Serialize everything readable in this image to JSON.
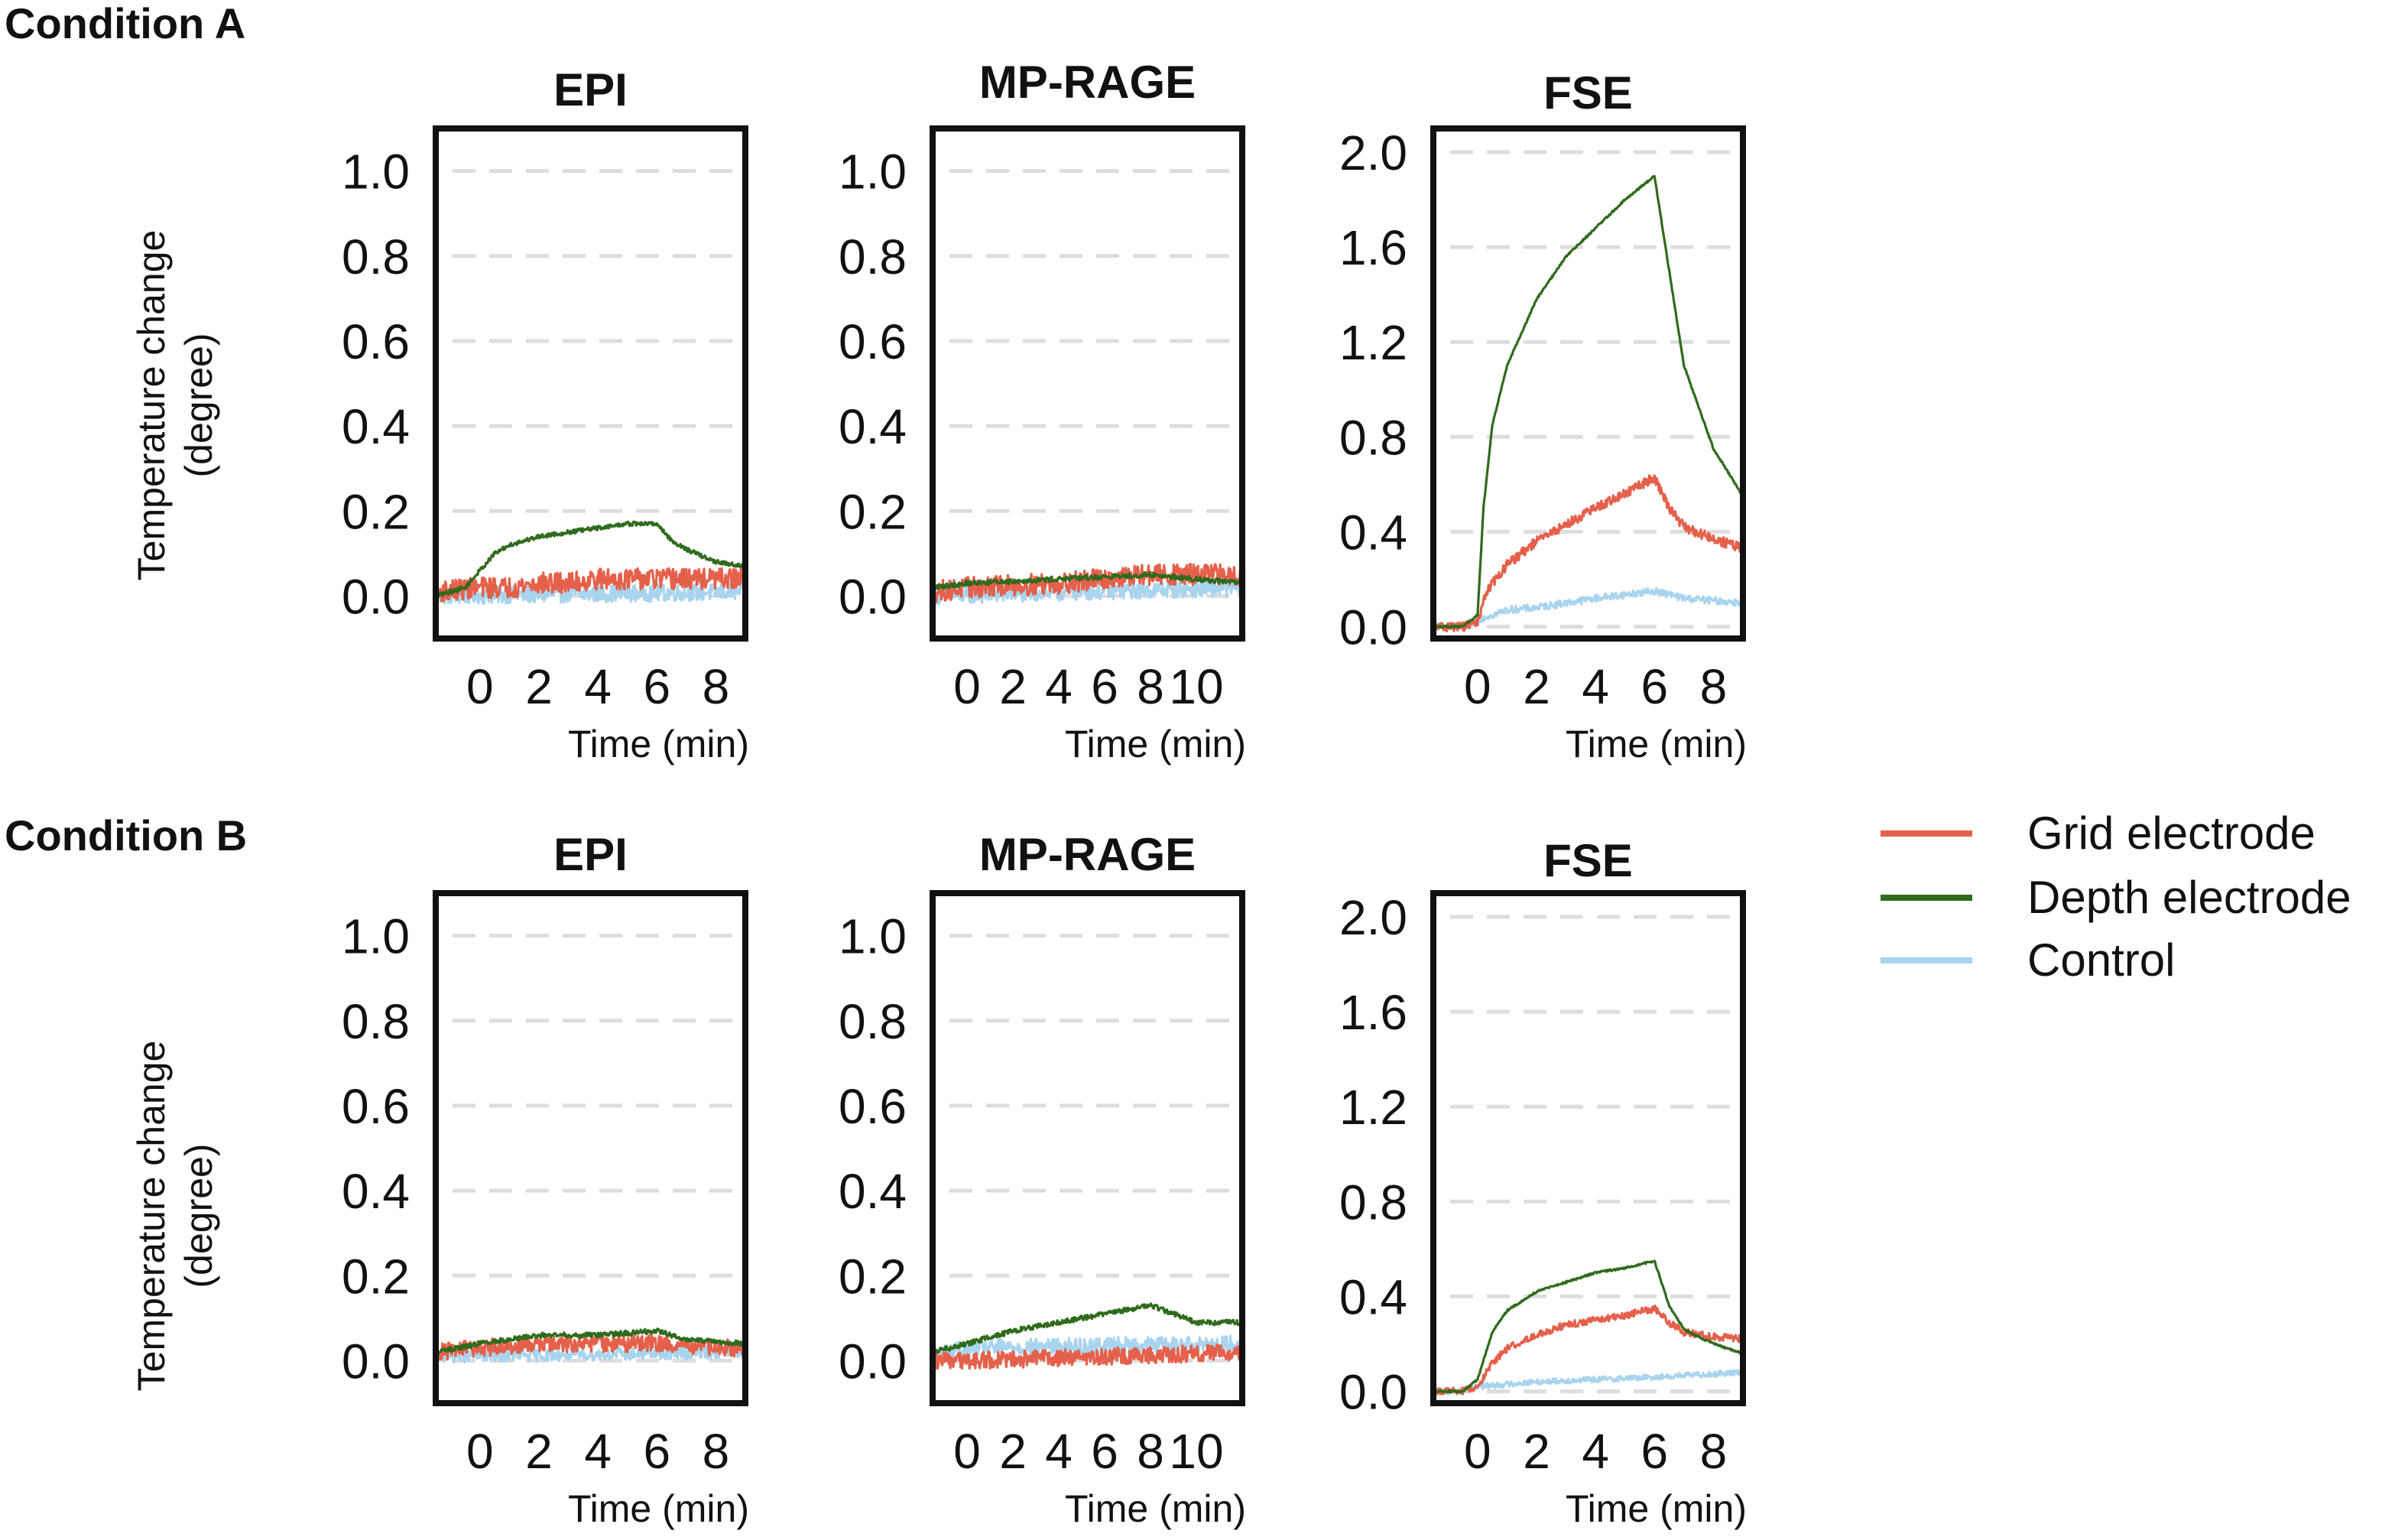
{
  "figure": {
    "conditions": [
      {
        "label": "Condition A"
      },
      {
        "label": "Condition B"
      }
    ],
    "ylabel_line1": "Temperature change",
    "ylabel_line2": "(degree)",
    "xlabel": "Time (min)"
  },
  "legend": {
    "entries": [
      {
        "name": "Grid electrode",
        "color": "#E5604A"
      },
      {
        "name": "Depth electrode",
        "color": "#2F6B1C"
      },
      {
        "name": "Control",
        "color": "#A8D4EE"
      }
    ]
  },
  "chart_data": [
    {
      "id": "A-EPI",
      "condition": "Condition A",
      "type": "line",
      "title": "EPI",
      "xlabel": "Time (min)",
      "ylabel": "Temperature change (degree)",
      "xlim": [
        -1.5,
        9
      ],
      "ylim": [
        -0.1,
        1.1
      ],
      "xticks": [
        0,
        2,
        4,
        6,
        8
      ],
      "yticks": [
        0.0,
        0.2,
        0.4,
        0.6,
        0.8,
        1.0
      ],
      "ytick_labels": [
        "0.0",
        "0.2",
        "0.4",
        "0.6",
        "0.8",
        "1.0"
      ],
      "grid": true,
      "series": [
        {
          "name": "Grid electrode",
          "noise": 0.025,
          "x": [
            -1.5,
            0,
            1,
            2,
            3,
            4,
            5,
            6,
            7,
            8,
            9
          ],
          "values": [
            0.01,
            0.02,
            0.02,
            0.03,
            0.03,
            0.04,
            0.04,
            0.04,
            0.04,
            0.04,
            0.04
          ]
        },
        {
          "name": "Depth electrode",
          "noise": 0.005,
          "x": [
            -1.5,
            -0.5,
            0,
            0.5,
            1,
            2,
            3,
            4,
            5,
            6,
            6.5,
            7,
            8,
            9
          ],
          "values": [
            0.0,
            0.02,
            0.06,
            0.1,
            0.12,
            0.14,
            0.15,
            0.16,
            0.17,
            0.17,
            0.13,
            0.11,
            0.08,
            0.07
          ]
        },
        {
          "name": "Control",
          "noise": 0.02,
          "x": [
            -1.5,
            9
          ],
          "values": [
            0.0,
            0.01
          ]
        }
      ]
    },
    {
      "id": "A-MPRAGE",
      "condition": "Condition A",
      "type": "line",
      "title": "MP-RAGE",
      "xlabel": "Time (min)",
      "ylabel": "Temperature change (degree)",
      "xlim": [
        -1.5,
        12
      ],
      "ylim": [
        -0.1,
        1.1
      ],
      "xticks": [
        0,
        2,
        4,
        6,
        8,
        10
      ],
      "yticks": [
        0.0,
        0.2,
        0.4,
        0.6,
        0.8,
        1.0
      ],
      "ytick_labels": [
        "0.0",
        "0.2",
        "0.4",
        "0.6",
        "0.8",
        "1.0"
      ],
      "grid": true,
      "series": [
        {
          "name": "Grid electrode",
          "noise": 0.025,
          "x": [
            -1.5,
            0,
            4,
            8,
            12
          ],
          "values": [
            0.01,
            0.02,
            0.03,
            0.05,
            0.05
          ]
        },
        {
          "name": "Depth electrode",
          "noise": 0.006,
          "x": [
            -1.5,
            0,
            4,
            8,
            12
          ],
          "values": [
            0.02,
            0.03,
            0.04,
            0.05,
            0.03
          ]
        },
        {
          "name": "Control",
          "noise": 0.02,
          "x": [
            -1.5,
            12
          ],
          "values": [
            0.0,
            0.02
          ]
        }
      ]
    },
    {
      "id": "A-FSE",
      "condition": "Condition A",
      "type": "line",
      "title": "FSE",
      "xlabel": "Time (min)",
      "ylabel": "Temperature change (degree)",
      "xlim": [
        -1.5,
        9
      ],
      "ylim": [
        -0.05,
        2.1
      ],
      "xticks": [
        0,
        2,
        4,
        6,
        8
      ],
      "yticks": [
        0.0,
        0.4,
        0.8,
        1.2,
        1.6,
        2.0
      ],
      "ytick_labels": [
        "0.0",
        "0.4",
        "0.8",
        "1.2",
        "1.6",
        "2.0"
      ],
      "grid": true,
      "series": [
        {
          "name": "Grid electrode",
          "noise": 0.02,
          "x": [
            -1.5,
            -0.5,
            0,
            0.3,
            1,
            2,
            3,
            4,
            5,
            6,
            6.5,
            7,
            8,
            9
          ],
          "values": [
            0.0,
            0.0,
            0.02,
            0.15,
            0.26,
            0.36,
            0.43,
            0.5,
            0.56,
            0.63,
            0.5,
            0.42,
            0.37,
            0.33
          ]
        },
        {
          "name": "Depth electrode",
          "noise": 0.004,
          "x": [
            -1.5,
            -0.5,
            0,
            0.2,
            0.5,
            1,
            2,
            3,
            4,
            5,
            6,
            6.5,
            7,
            8,
            9
          ],
          "values": [
            0.0,
            0.0,
            0.05,
            0.5,
            0.85,
            1.1,
            1.38,
            1.56,
            1.68,
            1.8,
            1.9,
            1.5,
            1.1,
            0.75,
            0.55
          ]
        },
        {
          "name": "Control",
          "noise": 0.015,
          "x": [
            -1.5,
            -0.5,
            0,
            1,
            2,
            4,
            6,
            7,
            9
          ],
          "values": [
            0.0,
            0.0,
            0.03,
            0.07,
            0.08,
            0.12,
            0.15,
            0.12,
            0.1
          ]
        }
      ]
    },
    {
      "id": "B-EPI",
      "condition": "Condition B",
      "type": "line",
      "title": "EPI",
      "xlabel": "Time (min)",
      "ylabel": "Temperature change (degree)",
      "xlim": [
        -1.5,
        9
      ],
      "ylim": [
        -0.1,
        1.1
      ],
      "xticks": [
        0,
        2,
        4,
        6,
        8
      ],
      "yticks": [
        0.0,
        0.2,
        0.4,
        0.6,
        0.8,
        1.0
      ],
      "ytick_labels": [
        "0.0",
        "0.2",
        "0.4",
        "0.6",
        "0.8",
        "1.0"
      ],
      "grid": true,
      "series": [
        {
          "name": "Grid electrode",
          "noise": 0.02,
          "x": [
            -1.5,
            0,
            2,
            4,
            6,
            8,
            9
          ],
          "values": [
            0.02,
            0.03,
            0.04,
            0.04,
            0.04,
            0.03,
            0.03
          ]
        },
        {
          "name": "Depth electrode",
          "noise": 0.006,
          "x": [
            -1.5,
            0,
            2,
            4,
            6,
            7,
            9
          ],
          "values": [
            0.02,
            0.04,
            0.06,
            0.06,
            0.07,
            0.05,
            0.04
          ]
        },
        {
          "name": "Control",
          "noise": 0.015,
          "x": [
            -1.5,
            9
          ],
          "values": [
            0.01,
            0.02
          ]
        }
      ]
    },
    {
      "id": "B-MPRAGE",
      "condition": "Condition B",
      "type": "line",
      "title": "MP-RAGE",
      "xlabel": "Time (min)",
      "ylabel": "Temperature change (degree)",
      "xlim": [
        -1.5,
        12
      ],
      "ylim": [
        -0.1,
        1.1
      ],
      "xticks": [
        0,
        2,
        4,
        6,
        8,
        10
      ],
      "yticks": [
        0.0,
        0.2,
        0.4,
        0.6,
        0.8,
        1.0
      ],
      "ytick_labels": [
        "0.0",
        "0.2",
        "0.4",
        "0.6",
        "0.8",
        "1.0"
      ],
      "grid": true,
      "series": [
        {
          "name": "Grid electrode",
          "noise": 0.02,
          "x": [
            -1.5,
            0,
            6,
            12
          ],
          "values": [
            0.0,
            0.0,
            0.01,
            0.02
          ]
        },
        {
          "name": "Depth electrode",
          "noise": 0.006,
          "x": [
            -1.5,
            0,
            2,
            4,
            6,
            8,
            9,
            10,
            12
          ],
          "values": [
            0.02,
            0.04,
            0.07,
            0.09,
            0.11,
            0.13,
            0.11,
            0.09,
            0.09
          ]
        },
        {
          "name": "Control",
          "noise": 0.02,
          "x": [
            -1.5,
            0,
            12
          ],
          "values": [
            0.01,
            0.03,
            0.04
          ]
        }
      ]
    },
    {
      "id": "B-FSE",
      "condition": "Condition B",
      "type": "line",
      "title": "FSE",
      "xlabel": "Time (min)",
      "ylabel": "Temperature change (degree)",
      "xlim": [
        -1.5,
        9
      ],
      "ylim": [
        -0.05,
        2.1
      ],
      "xticks": [
        0,
        2,
        4,
        6,
        8
      ],
      "yticks": [
        0.0,
        0.4,
        0.8,
        1.2,
        1.6,
        2.0
      ],
      "ytick_labels": [
        "0.0",
        "0.4",
        "0.8",
        "1.2",
        "1.6",
        "2.0"
      ],
      "grid": true,
      "series": [
        {
          "name": "Grid electrode",
          "noise": 0.015,
          "x": [
            -1.5,
            -0.5,
            0,
            0.5,
            1,
            2,
            3,
            4,
            5,
            6,
            6.5,
            7,
            8,
            9
          ],
          "values": [
            0.0,
            0.0,
            0.02,
            0.12,
            0.18,
            0.24,
            0.28,
            0.3,
            0.32,
            0.35,
            0.29,
            0.25,
            0.23,
            0.22
          ]
        },
        {
          "name": "Depth electrode",
          "noise": 0.004,
          "x": [
            -1.5,
            -0.5,
            0,
            0.5,
            1,
            2,
            3,
            4,
            5,
            6,
            6.5,
            7,
            8,
            9
          ],
          "values": [
            0.0,
            0.0,
            0.05,
            0.25,
            0.34,
            0.42,
            0.46,
            0.5,
            0.52,
            0.55,
            0.36,
            0.26,
            0.2,
            0.16
          ]
        },
        {
          "name": "Control",
          "noise": 0.012,
          "x": [
            -1.5,
            -0.5,
            0,
            2,
            6,
            9
          ],
          "values": [
            0.0,
            0.0,
            0.02,
            0.04,
            0.06,
            0.08
          ]
        }
      ]
    }
  ]
}
